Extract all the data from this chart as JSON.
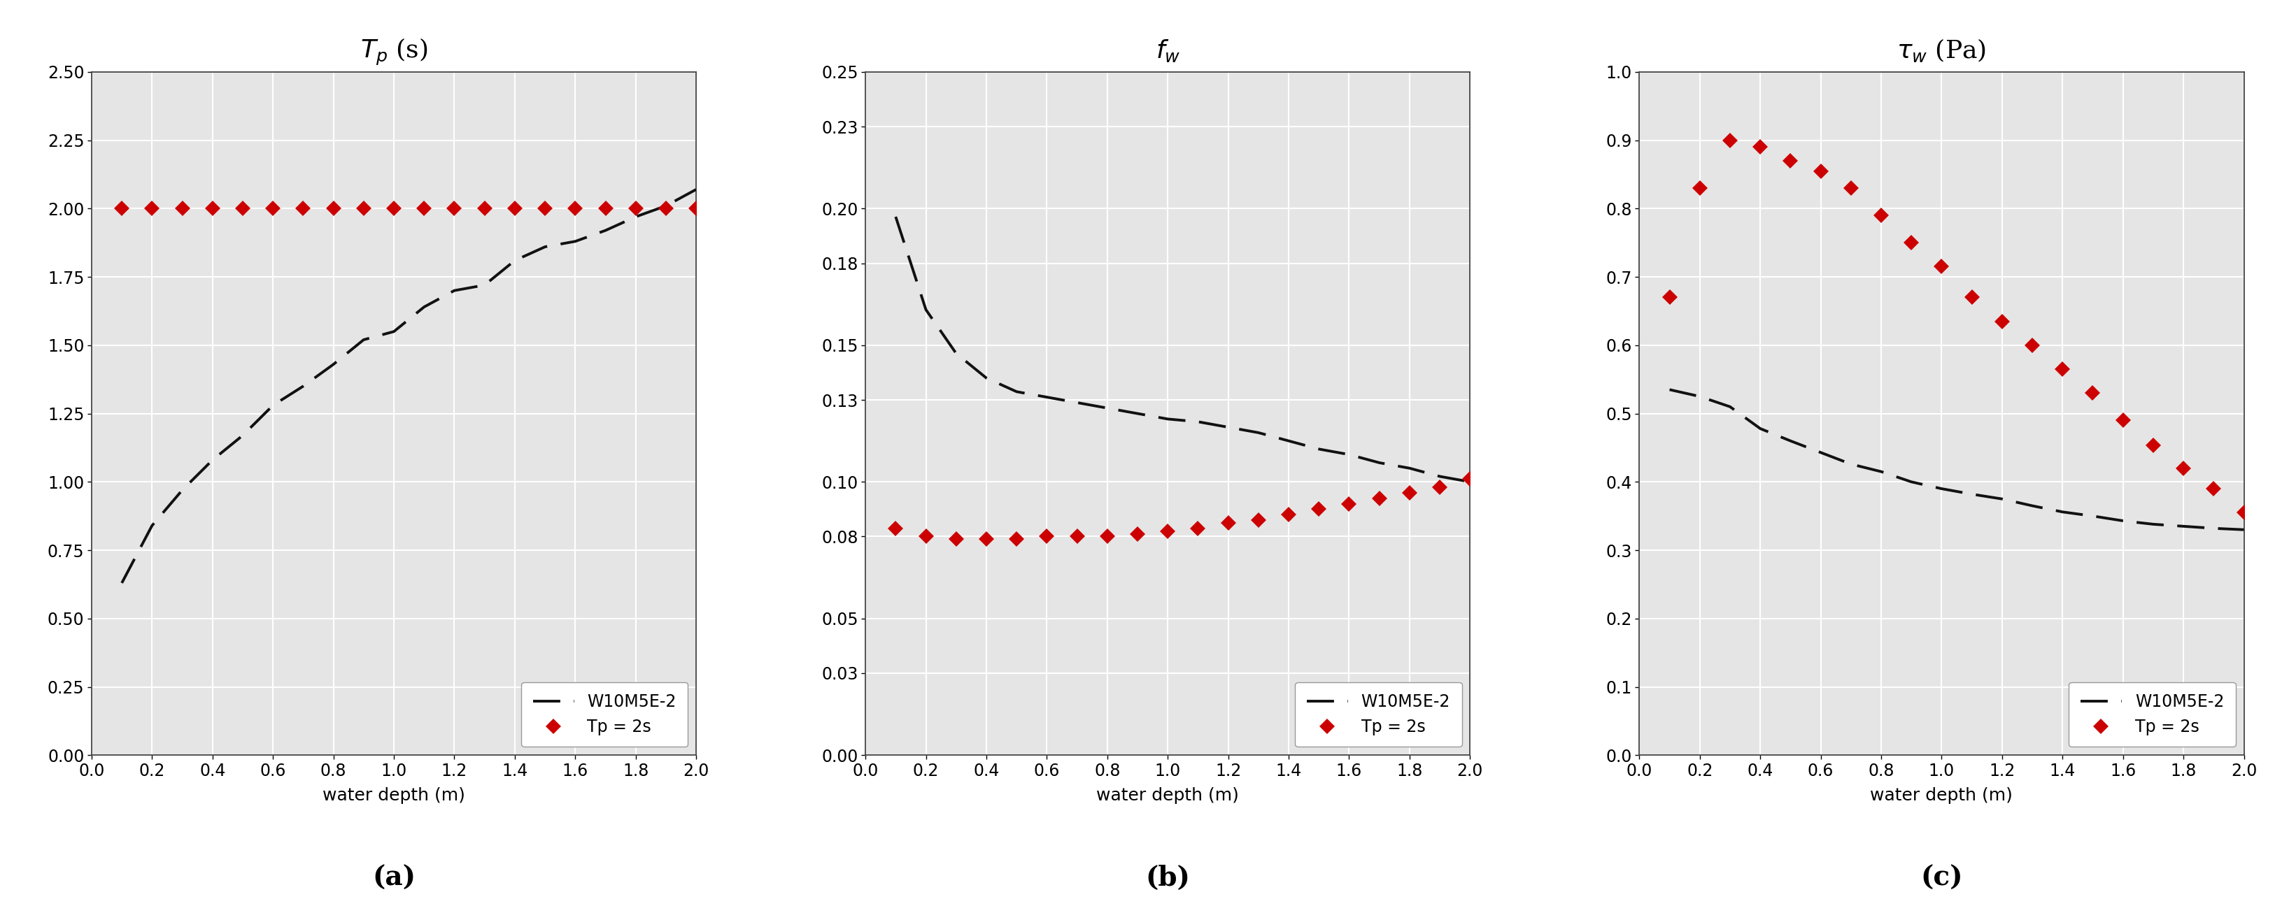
{
  "x": [
    0.1,
    0.2,
    0.3,
    0.4,
    0.5,
    0.6,
    0.7,
    0.8,
    0.9,
    1.0,
    1.1,
    1.2,
    1.3,
    1.4,
    1.5,
    1.6,
    1.7,
    1.8,
    1.9,
    2.0
  ],
  "panel_a": {
    "yticks": [
      0.0,
      0.25,
      0.5,
      0.75,
      1.0,
      1.25,
      1.5,
      1.75,
      2.0,
      2.25,
      2.5
    ],
    "ytick_labels": [
      "0.00",
      "0.25",
      "0.50",
      "0.75",
      "1.00",
      "1.25",
      "1.50",
      "1.75",
      "2.00",
      "2.25",
      "2.50"
    ],
    "ylim": [
      0.0,
      2.5
    ],
    "black_dashes": [
      0.63,
      0.84,
      0.97,
      1.08,
      1.17,
      1.28,
      1.35,
      1.43,
      1.52,
      1.55,
      1.64,
      1.7,
      1.72,
      1.81,
      1.86,
      1.88,
      1.92,
      1.97,
      2.01,
      2.07
    ],
    "red_diamonds": [
      2.0,
      2.0,
      2.0,
      2.0,
      2.0,
      2.0,
      2.0,
      2.0,
      2.0,
      2.0,
      2.0,
      2.0,
      2.0,
      2.0,
      2.0,
      2.0,
      2.0,
      2.0,
      2.0,
      2.0
    ],
    "sublabel": "(a)"
  },
  "panel_b": {
    "yticks": [
      0.0,
      0.03,
      0.05,
      0.08,
      0.1,
      0.13,
      0.15,
      0.18,
      0.2,
      0.23,
      0.25
    ],
    "ytick_labels": [
      "0.00",
      "0.03",
      "0.05",
      "0.08",
      "0.10",
      "0.13",
      "0.15",
      "0.18",
      "0.20",
      "0.23",
      "0.25"
    ],
    "ylim": [
      0.0,
      0.25
    ],
    "black_dashes": [
      0.197,
      0.163,
      0.147,
      0.138,
      0.133,
      0.131,
      0.129,
      0.127,
      0.125,
      0.123,
      0.122,
      0.12,
      0.118,
      0.115,
      0.112,
      0.11,
      0.107,
      0.105,
      0.102,
      0.1
    ],
    "red_diamonds": [
      0.083,
      0.08,
      0.079,
      0.079,
      0.079,
      0.08,
      0.08,
      0.08,
      0.081,
      0.082,
      0.083,
      0.085,
      0.086,
      0.088,
      0.09,
      0.092,
      0.094,
      0.096,
      0.098,
      0.101
    ],
    "sublabel": "(b)"
  },
  "panel_c": {
    "yticks": [
      0.0,
      0.1,
      0.2,
      0.3,
      0.4,
      0.5,
      0.6,
      0.7,
      0.8,
      0.9,
      1.0
    ],
    "ytick_labels": [
      "0.0",
      "0.1",
      "0.2",
      "0.3",
      "0.4",
      "0.5",
      "0.6",
      "0.7",
      "0.8",
      "0.9",
      "1.0"
    ],
    "ylim": [
      0.0,
      1.0
    ],
    "black_dashes": [
      0.535,
      0.525,
      0.51,
      0.478,
      0.46,
      0.443,
      0.426,
      0.415,
      0.4,
      0.39,
      0.382,
      0.375,
      0.365,
      0.356,
      0.35,
      0.343,
      0.338,
      0.335,
      0.332,
      0.33
    ],
    "red_diamonds": [
      0.67,
      0.83,
      0.9,
      0.89,
      0.87,
      0.855,
      0.83,
      0.79,
      0.75,
      0.715,
      0.67,
      0.635,
      0.6,
      0.565,
      0.53,
      0.49,
      0.453,
      0.42,
      0.39,
      0.355
    ],
    "sublabel": "(c)"
  },
  "xticks": [
    0.0,
    0.2,
    0.4,
    0.6,
    0.8,
    1.0,
    1.2,
    1.4,
    1.6,
    1.8,
    2.0
  ],
  "xtick_labels": [
    "0.0",
    "0.2",
    "0.4",
    "0.6",
    "0.8",
    "1.0",
    "1.2",
    "1.4",
    "1.6",
    "1.8",
    "2.0"
  ],
  "xlim": [
    0.0,
    2.0
  ],
  "xlabel": "water depth (m)",
  "titles": [
    "$T_p$ (s)",
    "$f_w$",
    "$\\tau_w$ (Pa)"
  ],
  "legend_label_black": "W10M5E-2",
  "legend_label_red": "Tp = 2s",
  "line_color_black": "#111111",
  "marker_color_red": "#cc0000",
  "bg_color": "#e5e5e5",
  "grid_color": "#ffffff",
  "title_fontsize": 26,
  "label_fontsize": 18,
  "tick_fontsize": 17,
  "legend_fontsize": 17,
  "sublabel_fontsize": 28
}
